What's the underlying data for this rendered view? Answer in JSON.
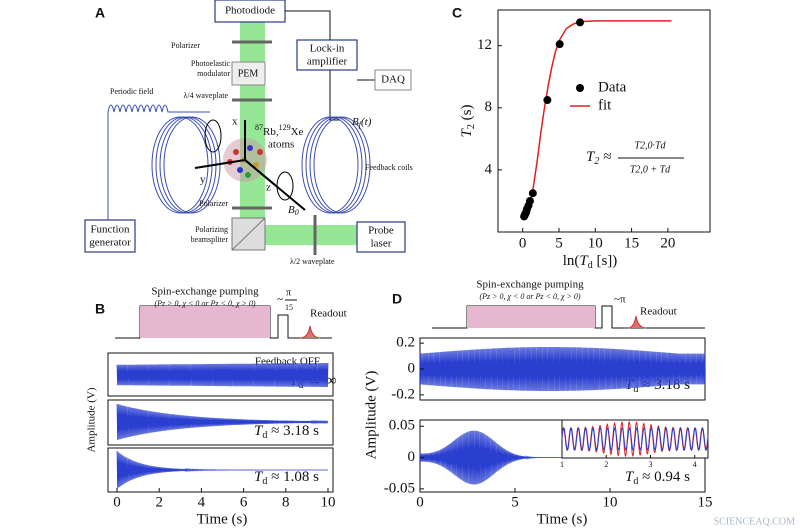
{
  "panel_a": {
    "label": "A",
    "photodiode": "Photodiode",
    "lock_in": [
      "Lock-in",
      "amplifier"
    ],
    "daq": "DAQ",
    "polarizer_top": "Polarizer",
    "pem_caption": [
      "Photoelastic",
      "modulator"
    ],
    "pem": "PEM",
    "quarter_waveplate": "λ/4 waveplate",
    "periodic_field": "Periodic field",
    "atoms": [
      "87",
      "Rb,",
      "129",
      "Xe"
    ],
    "atoms_line2": "atoms",
    "x": "x",
    "y": "y",
    "z": "z",
    "b0": [
      "B",
      "0"
    ],
    "bf": [
      "B",
      "f",
      "(t)"
    ],
    "feedback_coils": "Feedback coils",
    "polarizer_bottom": "Polarizer",
    "beamsplitter": [
      "Polarizing",
      "beamspliter"
    ],
    "half_waveplate": "λ/2 waveplate",
    "function_generator": [
      "Function",
      "generator"
    ],
    "probe_laser": [
      "Probe",
      "laser"
    ]
  },
  "chart_data": {
    "type": "scatter",
    "panel_label": "C",
    "y_label": [
      "T",
      "2",
      " (s)"
    ],
    "x_label": [
      "ln(",
      "T",
      "d",
      " [s])"
    ],
    "xlim": [
      -3.4,
      25.8
    ],
    "xticks": [
      0,
      5,
      10,
      15,
      20
    ],
    "ylim": [
      0,
      14.3
    ],
    "yticks": [
      4,
      8,
      12
    ],
    "legend": "upper right",
    "series": [
      {
        "name": "Data",
        "kind": "points",
        "color": "#000000",
        "x": [
          0.2,
          0.3,
          0.4,
          0.5,
          0.6,
          0.8,
          1.0,
          1.4,
          3.4,
          5.1,
          7.9
        ],
        "values": [
          1.0,
          1.1,
          1.2,
          1.3,
          1.5,
          1.7,
          2.0,
          2.5,
          8.5,
          12.1,
          13.5
        ]
      },
      {
        "name": "fit",
        "kind": "line",
        "color": "#e02020",
        "x": [
          0.6,
          1.0,
          1.5,
          2.0,
          2.5,
          3.0,
          3.5,
          4.0,
          4.5,
          5.0,
          6.0,
          7.0,
          8.0,
          10.0,
          15.0,
          20.5
        ],
        "values": [
          1.2,
          1.8,
          3.0,
          4.6,
          6.4,
          8.0,
          9.4,
          10.6,
          11.6,
          12.3,
          13.1,
          13.4,
          13.55,
          13.6,
          13.6,
          13.6
        ]
      }
    ],
    "formula": {
      "lhs": [
        "T",
        "2",
        " ≈"
      ],
      "numerator": "T2,0·Td",
      "denominator": "T2,0 + Td"
    }
  },
  "panel_b": {
    "label": "B",
    "pumping": "Spin-exchange pumping",
    "condition": "(Pz > 0, χ < 0 or Pz < 0, χ > 0)",
    "angle": [
      "~",
      "π",
      "15"
    ],
    "readout": "Readout",
    "feedback_off": "Feedback OFF",
    "traces": [
      [
        "T",
        "d",
        " → ∞"
      ],
      [
        "T",
        "d",
        " ≈ 3.18 s"
      ],
      [
        "T",
        "d",
        " ≈ 1.08 s"
      ]
    ],
    "y_label": "Amplitude (V)",
    "x_label": "Time (s)",
    "xlim": [
      0,
      10
    ],
    "xticks": [
      0,
      2,
      4,
      6,
      8,
      10
    ]
  },
  "panel_d": {
    "label": "D",
    "pumping": "Spin-exchange pumping",
    "condition": "(Pz > 0, χ < 0 or Pz < 0, χ > 0)",
    "angle": "~π",
    "readout": "Readout",
    "traces": [
      [
        "T",
        "d",
        " ≈ 3.18 s"
      ],
      [
        "T",
        "d",
        " ≈ 0.94 s"
      ]
    ],
    "y_label": "Amplitude (V)",
    "x_label": "Time (s)",
    "xlim": [
      0,
      15
    ],
    "xticks": [
      0,
      5,
      10,
      15
    ],
    "top_ylim": [
      -0.24,
      0.24
    ],
    "top_yticks": [
      0.2,
      0,
      -0.2
    ],
    "bottom_ylim": [
      -0.055,
      0.06
    ],
    "bottom_yticks": [
      0.05,
      0,
      -0.05
    ],
    "inset_xlim": [
      1,
      4.3
    ],
    "inset_xticks": [
      1,
      2,
      3,
      4
    ]
  },
  "watermark": "SCIENCEAQ.COM"
}
